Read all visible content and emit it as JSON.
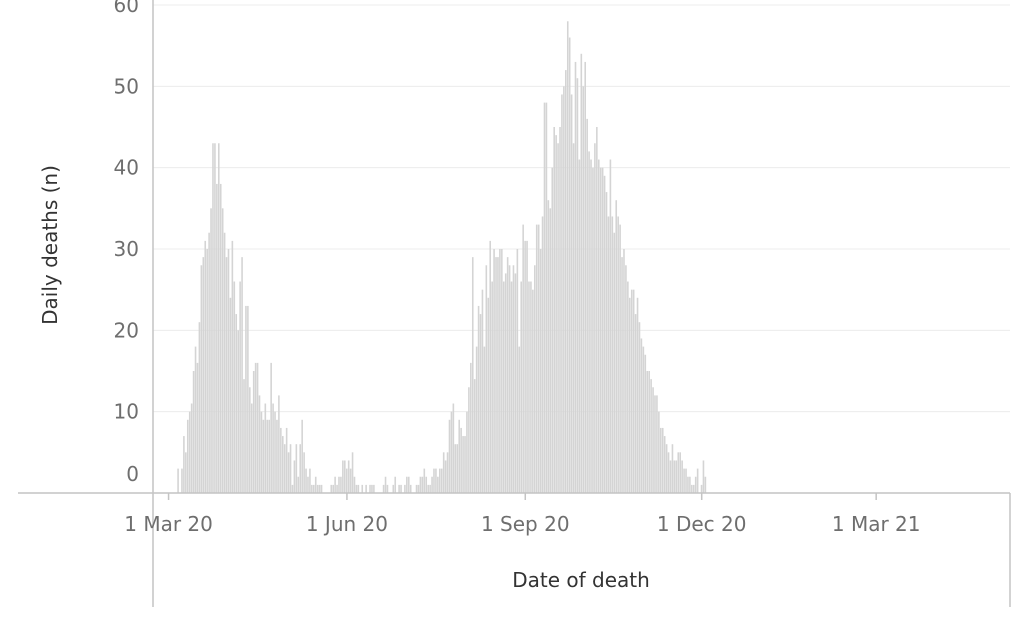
{
  "chart_data": {
    "type": "bar",
    "xlabel": "Date of death",
    "ylabel": "Daily deaths (n)",
    "y_ticks": [
      0,
      10,
      20,
      30,
      40,
      50,
      60
    ],
    "x_ticks": [
      "1 Mar 20",
      "1 Jun 20",
      "1 Sep 20",
      "1 Dec 20",
      "1 Mar 21"
    ],
    "x_range": [
      "2020-02-23",
      "2021-05-08"
    ],
    "ylim": [
      0,
      60
    ],
    "grid": true,
    "bar_color": "#d4d4d4",
    "start_date": "2020-03-06",
    "values": [
      3,
      0,
      3,
      7,
      5,
      9,
      10,
      11,
      15,
      18,
      16,
      21,
      28,
      29,
      31,
      30,
      32,
      35,
      43,
      43,
      38,
      43,
      38,
      35,
      32,
      29,
      30,
      24,
      31,
      26,
      22,
      20,
      26,
      29,
      14,
      23,
      23,
      13,
      11,
      15,
      16,
      16,
      12,
      10,
      9,
      11,
      9,
      9,
      16,
      11,
      10,
      9,
      12,
      8,
      7,
      6,
      8,
      5,
      6,
      1,
      4,
      6,
      2,
      6,
      9,
      5,
      3,
      2,
      3,
      1,
      1,
      2,
      1,
      1,
      1,
      0,
      0,
      0,
      0,
      1,
      1,
      2,
      1,
      2,
      2,
      4,
      4,
      3,
      4,
      3,
      5,
      2,
      1,
      1,
      0,
      1,
      0,
      1,
      0,
      1,
      1,
      1,
      0,
      0,
      0,
      0,
      1,
      2,
      1,
      0,
      0,
      1,
      2,
      0,
      1,
      1,
      0,
      1,
      2,
      2,
      1,
      0,
      0,
      1,
      1,
      2,
      2,
      3,
      2,
      1,
      1,
      2,
      3,
      3,
      2,
      3,
      3,
      5,
      4,
      5,
      9,
      10,
      11,
      6,
      6,
      9,
      8,
      7,
      7,
      10,
      13,
      16,
      29,
      14,
      18,
      23,
      22,
      25,
      18,
      28,
      24,
      31,
      26,
      30,
      29,
      29,
      30,
      30,
      26,
      27,
      29,
      28,
      26,
      28,
      27,
      30,
      18,
      26,
      33,
      31,
      31,
      26,
      26,
      25,
      28,
      33,
      33,
      30,
      34,
      48,
      48,
      36,
      35,
      40,
      45,
      44,
      43,
      45,
      49,
      50,
      52,
      58,
      56,
      49,
      43,
      53,
      51,
      41,
      54,
      50,
      53,
      46,
      42,
      41,
      40,
      43,
      45,
      41,
      40,
      40,
      39,
      37,
      34,
      41,
      34,
      32,
      36,
      34,
      33,
      29,
      30,
      28,
      26,
      24,
      25,
      25,
      22,
      24,
      21,
      19,
      18,
      17,
      15,
      15,
      14,
      13,
      12,
      12,
      10,
      8,
      8,
      7,
      6,
      5,
      4,
      6,
      4,
      4,
      5,
      5,
      4,
      3,
      3,
      2,
      2,
      1,
      1,
      2,
      3,
      0,
      1,
      4,
      2
    ]
  }
}
